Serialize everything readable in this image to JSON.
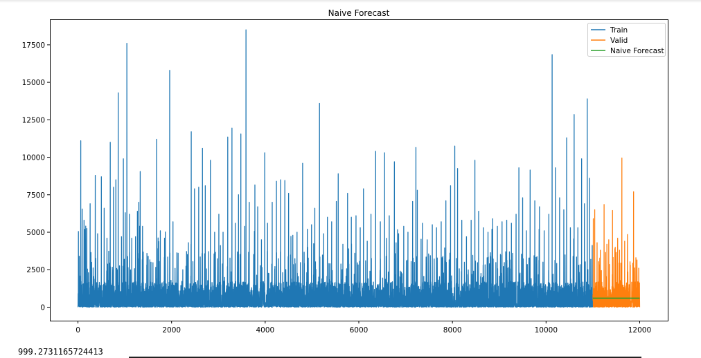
{
  "output": {
    "value_text": "999.2731165724413"
  },
  "chart_data": {
    "type": "line",
    "title": "Naive Forecast",
    "xlabel": "",
    "ylabel": "",
    "xlim": [
      -600,
      12600
    ],
    "ylim": [
      -900,
      19200
    ],
    "x_ticks": [
      0,
      2000,
      4000,
      6000,
      8000,
      10000,
      12000
    ],
    "y_ticks": [
      0,
      2500,
      5000,
      7500,
      10000,
      12500,
      15000,
      17500
    ],
    "legend_position": "top-right",
    "grid": false,
    "series": [
      {
        "name": "Train",
        "color": "#1f77b4",
        "x_range": [
          0,
          10999
        ],
        "baseline_level": 0,
        "dense_band_top": 1700,
        "peaks": [
          [
            10,
            5050
          ],
          [
            60,
            11100
          ],
          [
            90,
            6550
          ],
          [
            130,
            5800
          ],
          [
            190,
            5250
          ],
          [
            260,
            6900
          ],
          [
            370,
            8800
          ],
          [
            420,
            4900
          ],
          [
            500,
            8700
          ],
          [
            560,
            6600
          ],
          [
            620,
            4600
          ],
          [
            690,
            11000
          ],
          [
            760,
            8000
          ],
          [
            810,
            8500
          ],
          [
            860,
            14300
          ],
          [
            930,
            4700
          ],
          [
            970,
            9900
          ],
          [
            1010,
            6300
          ],
          [
            1045,
            17600
          ],
          [
            1100,
            6200
          ],
          [
            1150,
            4600
          ],
          [
            1230,
            4700
          ],
          [
            1270,
            6400
          ],
          [
            1300,
            7000
          ],
          [
            1330,
            9050
          ],
          [
            1380,
            5400
          ],
          [
            1500,
            3400
          ],
          [
            1560,
            3000
          ],
          [
            1680,
            11200
          ],
          [
            1760,
            5100
          ],
          [
            1850,
            4600
          ],
          [
            1960,
            15800
          ],
          [
            2030,
            5700
          ],
          [
            2140,
            3600
          ],
          [
            2240,
            2500
          ],
          [
            2360,
            4300
          ],
          [
            2420,
            11700
          ],
          [
            2490,
            7900
          ],
          [
            2580,
            8000
          ],
          [
            2660,
            10600
          ],
          [
            2720,
            8100
          ],
          [
            2830,
            9800
          ],
          [
            2920,
            5000
          ],
          [
            3010,
            6200
          ],
          [
            3100,
            5000
          ],
          [
            3200,
            11350
          ],
          [
            3290,
            11950
          ],
          [
            3360,
            5600
          ],
          [
            3430,
            7500
          ],
          [
            3480,
            11550
          ],
          [
            3560,
            5400
          ],
          [
            3590,
            18500
          ],
          [
            3660,
            7000
          ],
          [
            3780,
            8150
          ],
          [
            3840,
            6700
          ],
          [
            3920,
            4500
          ],
          [
            3990,
            10300
          ],
          [
            4050,
            5600
          ],
          [
            4150,
            7000
          ],
          [
            4240,
            8400
          ],
          [
            4330,
            8500
          ],
          [
            4420,
            8450
          ],
          [
            4500,
            7600
          ],
          [
            4590,
            4800
          ],
          [
            4680,
            5000
          ],
          [
            4800,
            9600
          ],
          [
            4900,
            5200
          ],
          [
            4990,
            5500
          ],
          [
            5060,
            6600
          ],
          [
            5160,
            13600
          ],
          [
            5250,
            4900
          ],
          [
            5330,
            6000
          ],
          [
            5420,
            5700
          ],
          [
            5520,
            7050
          ],
          [
            5560,
            8900
          ],
          [
            5660,
            4200
          ],
          [
            5760,
            7600
          ],
          [
            5840,
            6000
          ],
          [
            5940,
            6100
          ],
          [
            6030,
            5300
          ],
          [
            6100,
            7900
          ],
          [
            6180,
            4400
          ],
          [
            6260,
            6200
          ],
          [
            6360,
            10400
          ],
          [
            6460,
            5700
          ],
          [
            6550,
            10300
          ],
          [
            6650,
            6100
          ],
          [
            6760,
            9700
          ],
          [
            6850,
            4900
          ],
          [
            6960,
            5400
          ],
          [
            7050,
            5000
          ],
          [
            7150,
            7050
          ],
          [
            7220,
            10650
          ],
          [
            7250,
            7800
          ],
          [
            7360,
            5600
          ],
          [
            7460,
            4500
          ],
          [
            7570,
            5500
          ],
          [
            7660,
            5300
          ],
          [
            7760,
            5700
          ],
          [
            7860,
            7100
          ],
          [
            7960,
            8100
          ],
          [
            8050,
            10750
          ],
          [
            8110,
            9250
          ],
          [
            8200,
            5800
          ],
          [
            8300,
            4700
          ],
          [
            8400,
            5800
          ],
          [
            8480,
            9800
          ],
          [
            8560,
            6400
          ],
          [
            8660,
            5300
          ],
          [
            8760,
            5000
          ],
          [
            8860,
            5900
          ],
          [
            8960,
            5400
          ],
          [
            9060,
            5700
          ],
          [
            9160,
            5800
          ],
          [
            9260,
            5600
          ],
          [
            9360,
            6200
          ],
          [
            9420,
            9300
          ],
          [
            9500,
            7300
          ],
          [
            9580,
            5100
          ],
          [
            9660,
            9150
          ],
          [
            9760,
            7100
          ],
          [
            9860,
            6700
          ],
          [
            9960,
            5100
          ],
          [
            10060,
            6200
          ],
          [
            10130,
            16850
          ],
          [
            10200,
            9300
          ],
          [
            10290,
            7300
          ],
          [
            10380,
            6500
          ],
          [
            10440,
            11300
          ],
          [
            10520,
            5300
          ],
          [
            10600,
            12850
          ],
          [
            10680,
            5300
          ],
          [
            10760,
            9900
          ],
          [
            10820,
            6900
          ],
          [
            10880,
            13900
          ],
          [
            10930,
            8600
          ]
        ]
      },
      {
        "name": "Valid",
        "color": "#ff7f0e",
        "x_range": [
          11000,
          12000
        ],
        "baseline_level": 0,
        "dense_band_top": 1700,
        "peaks": [
          [
            11010,
            5900
          ],
          [
            11040,
            6500
          ],
          [
            11090,
            4300
          ],
          [
            11160,
            3800
          ],
          [
            11240,
            6850
          ],
          [
            11300,
            4200
          ],
          [
            11340,
            4500
          ],
          [
            11420,
            6450
          ],
          [
            11470,
            3900
          ],
          [
            11530,
            4600
          ],
          [
            11570,
            3800
          ],
          [
            11620,
            9950
          ],
          [
            11680,
            4400
          ],
          [
            11740,
            4850
          ],
          [
            11800,
            2800
          ],
          [
            11870,
            7700
          ],
          [
            11920,
            3300
          ],
          [
            11980,
            2600
          ]
        ]
      },
      {
        "name": "Naive Forecast",
        "color": "#2ca02c",
        "x": [
          11000,
          12000
        ],
        "y": [
          600,
          600
        ]
      }
    ]
  }
}
